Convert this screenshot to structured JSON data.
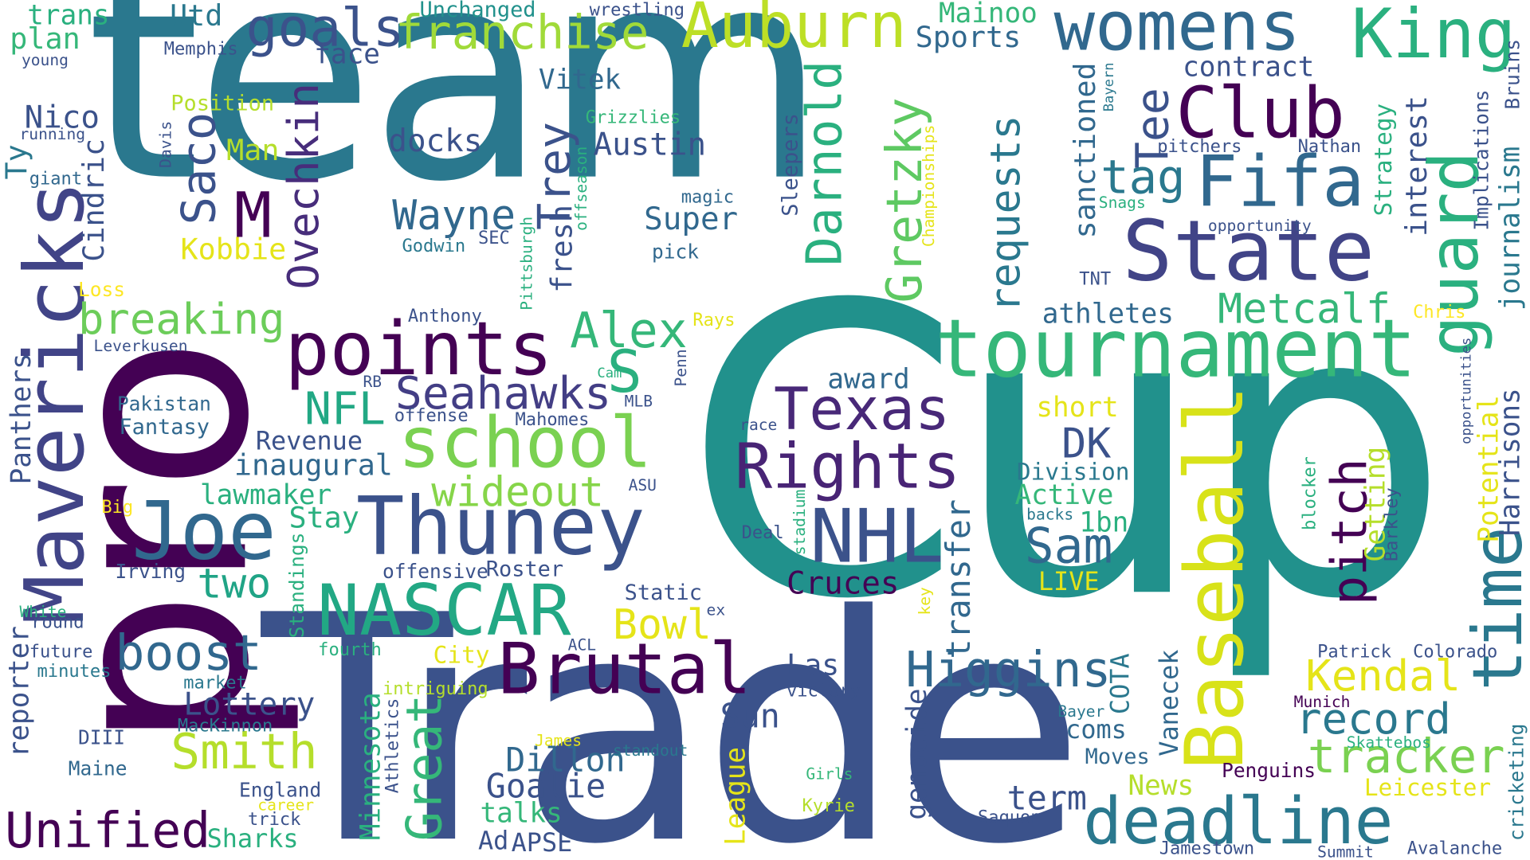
{
  "palette": {
    "dark_purple": "#440154",
    "indigo": "#3b528b",
    "blue": "#31688e",
    "teal": "#21918c",
    "sea": "#2ab07f",
    "green": "#5ec962",
    "lime": "#b5de2b",
    "yellow": "#fde725"
  },
  "words": [
    {
      "text": "team",
      "color": "#2a788e"
    },
    {
      "text": "Cup",
      "color": "#21918c"
    },
    {
      "text": "Trade",
      "color": "#3b528b"
    },
    {
      "text": "pro",
      "color": "#440154"
    },
    {
      "text": "Mavericks",
      "color": "#414487"
    },
    {
      "text": "tournament",
      "color": "#35b779"
    },
    {
      "text": "womens",
      "color": "#31688e"
    },
    {
      "text": "State",
      "color": "#414487"
    },
    {
      "text": "Fifa",
      "color": "#31688e"
    },
    {
      "text": "Club",
      "color": "#440154"
    },
    {
      "text": "King",
      "color": "#2ab07f"
    },
    {
      "text": "guard",
      "color": "#2ab07f"
    },
    {
      "text": "time",
      "color": "#2a788e"
    },
    {
      "text": "Baseball",
      "color": "#d8e219"
    },
    {
      "text": "tracker",
      "color": "#7ad151"
    },
    {
      "text": "deadline",
      "color": "#2a788e"
    },
    {
      "text": "Thuney",
      "color": "#3b528b"
    },
    {
      "text": "Joe",
      "color": "#31688e"
    },
    {
      "text": "NASCAR",
      "color": "#22a884"
    },
    {
      "text": "Brutal",
      "color": "#440154"
    },
    {
      "text": "school",
      "color": "#7ad151"
    },
    {
      "text": "Rights",
      "color": "#482475"
    },
    {
      "text": "Texas",
      "color": "#482878"
    },
    {
      "text": "NHL",
      "color": "#3b528b"
    },
    {
      "text": "points",
      "color": "#440154"
    },
    {
      "text": "franchise",
      "color": "#a0da39"
    },
    {
      "text": "Auburn",
      "color": "#bddf26"
    },
    {
      "text": "goals",
      "color": "#3b528b"
    },
    {
      "text": "Unified",
      "color": "#440154"
    },
    {
      "text": "Smith",
      "color": "#b5de2b"
    },
    {
      "text": "boost",
      "color": "#31688e"
    },
    {
      "text": "breaking",
      "color": "#6ccd5a"
    },
    {
      "text": "Seahawks",
      "color": "#433e85"
    },
    {
      "text": "wideout",
      "color": "#86d549"
    },
    {
      "text": "Higgins",
      "color": "#31688e"
    },
    {
      "text": "Kendal",
      "color": "#e5e419"
    },
    {
      "text": "record",
      "color": "#2a788e"
    },
    {
      "text": "Alex",
      "color": "#35b779"
    },
    {
      "text": "Metcalf",
      "color": "#35b779"
    },
    {
      "text": "Wayne",
      "color": "#31688e"
    },
    {
      "text": "Sam",
      "color": "#31688e"
    },
    {
      "text": "pitch",
      "color": "#440154"
    },
    {
      "text": "Great",
      "color": "#35b779"
    },
    {
      "text": "Darnold",
      "color": "#2ab07f"
    },
    {
      "text": "Gretzky",
      "color": "#5ec962"
    },
    {
      "text": "Ovechkin",
      "color": "#472d7b"
    },
    {
      "text": "Saco",
      "color": "#3b528b"
    },
    {
      "text": "Trey",
      "color": "#3b528b"
    },
    {
      "text": "Tee",
      "color": "#3b528b"
    },
    {
      "text": "tag",
      "color": "#2a788e"
    },
    {
      "text": "DK",
      "color": "#3b528b"
    },
    {
      "text": "Bowl",
      "color": "#e5e419"
    },
    {
      "text": "NFL",
      "color": "#22a884"
    },
    {
      "text": "Dillon",
      "color": "#31688e"
    },
    {
      "text": "Goalie",
      "color": "#3b528b"
    },
    {
      "text": "term",
      "color": "#3b528b"
    },
    {
      "text": "two",
      "color": "#20a486"
    },
    {
      "text": "Lottery",
      "color": "#3b528b"
    },
    {
      "text": "Sun",
      "color": "#3b528b"
    },
    {
      "text": "Cruces",
      "color": "#440154"
    },
    {
      "text": "Las",
      "color": "#3b528b"
    },
    {
      "text": "Austin",
      "color": "#3b528b"
    },
    {
      "text": "Super",
      "color": "#31688e"
    },
    {
      "text": "docks",
      "color": "#3b528b"
    },
    {
      "text": "Nico",
      "color": "#3b528b"
    },
    {
      "text": "Kobbie",
      "color": "#e5e419"
    },
    {
      "text": "Man",
      "color": "#b5de2b"
    },
    {
      "text": "M",
      "color": "#440154"
    },
    {
      "text": "S",
      "color": "#2ab07f"
    },
    {
      "text": "transfer",
      "color": "#31688e"
    },
    {
      "text": "requests",
      "color": "#2a788e"
    },
    {
      "text": "sanctioned",
      "color": "#31688e"
    },
    {
      "text": "interest",
      "color": "#3b528b"
    },
    {
      "text": "contract",
      "color": "#3b528b"
    },
    {
      "text": "Sports",
      "color": "#31688e"
    },
    {
      "text": "Mainoo",
      "color": "#35b779"
    },
    {
      "text": "Utd",
      "color": "#2a788e"
    },
    {
      "text": "trans",
      "color": "#2ab07f"
    },
    {
      "text": "plan",
      "color": "#35b779"
    },
    {
      "text": "face",
      "color": "#3b528b"
    },
    {
      "text": "Vitek",
      "color": "#31688e"
    },
    {
      "text": "Position",
      "color": "#b5de2b"
    },
    {
      "text": "Cindric",
      "color": "#3b528b"
    },
    {
      "text": "Ty",
      "color": "#2a788e"
    },
    {
      "text": "giant",
      "color": "#31688e"
    },
    {
      "text": "running",
      "color": "#3b528b"
    },
    {
      "text": "young",
      "color": "#3b528b"
    },
    {
      "text": "Memphis",
      "color": "#3b528b"
    },
    {
      "text": "Unchanged",
      "color": "#21918c"
    },
    {
      "text": "wrestling",
      "color": "#3b528b"
    },
    {
      "text": "Panthers",
      "color": "#3b528b"
    },
    {
      "text": "reporter",
      "color": "#3b528b"
    },
    {
      "text": "Pakistan",
      "color": "#31688e"
    },
    {
      "text": "Fantasy",
      "color": "#31688e"
    },
    {
      "text": "Revenue",
      "color": "#3b528b"
    },
    {
      "text": "inaugural",
      "color": "#31688e"
    },
    {
      "text": "lawmaker",
      "color": "#2ab07f"
    },
    {
      "text": "Stay",
      "color": "#2ab07f"
    },
    {
      "text": "Leverkusen",
      "color": "#3b528b"
    },
    {
      "text": "Loss",
      "color": "#fde725"
    },
    {
      "text": "Anthony",
      "color": "#3b528b"
    },
    {
      "text": "athletes",
      "color": "#31688e"
    },
    {
      "text": "award",
      "color": "#31688e"
    },
    {
      "text": "short",
      "color": "#e5e419"
    },
    {
      "text": "Division",
      "color": "#2a788e"
    },
    {
      "text": "Active",
      "color": "#35b779"
    },
    {
      "text": "1bn",
      "color": "#2ab07f"
    },
    {
      "text": "LIVE",
      "color": "#e5e419"
    },
    {
      "text": "backs",
      "color": "#2a788e"
    },
    {
      "text": "Potential",
      "color": "#e5e419"
    },
    {
      "text": "Getting",
      "color": "#b5de2b"
    },
    {
      "text": "Harrisons",
      "color": "#3b528b"
    },
    {
      "text": "journalism",
      "color": "#2a788e"
    },
    {
      "text": "cricketing",
      "color": "#2a788e"
    },
    {
      "text": "Implications",
      "color": "#3b528b"
    },
    {
      "text": "Bruins",
      "color": "#3b528b"
    },
    {
      "text": "Strategy",
      "color": "#2ab07f"
    },
    {
      "text": "opportunity",
      "color": "#3b528b"
    },
    {
      "text": "pitchers",
      "color": "#3b528b"
    },
    {
      "text": "Nathan",
      "color": "#3b528b"
    },
    {
      "text": "Snags",
      "color": "#2ab07f"
    },
    {
      "text": "Bayern",
      "color": "#2a788e"
    },
    {
      "text": "Sleepers",
      "color": "#3b528b"
    },
    {
      "text": "magic",
      "color": "#31688e"
    },
    {
      "text": "pick",
      "color": "#31688e"
    },
    {
      "text": "Godwin",
      "color": "#2a788e"
    },
    {
      "text": "SEC",
      "color": "#3b528b"
    },
    {
      "text": "Grizzlies",
      "color": "#35b779"
    },
    {
      "text": "fresh",
      "color": "#3b528b"
    },
    {
      "text": "offseason",
      "color": "#2ab07f"
    },
    {
      "text": "Pittsburgh",
      "color": "#2ab07f"
    },
    {
      "text": "Championships",
      "color": "#e5e419"
    },
    {
      "text": "TNT",
      "color": "#3b528b"
    },
    {
      "text": "Chris",
      "color": "#fde725"
    },
    {
      "text": "opportunities",
      "color": "#3b528b"
    },
    {
      "text": "Rays",
      "color": "#e5e419"
    },
    {
      "text": "Penn",
      "color": "#3b528b"
    },
    {
      "text": "Cam",
      "color": "#2ab07f"
    },
    {
      "text": "RB",
      "color": "#3b528b"
    },
    {
      "text": "offense",
      "color": "#3b528b"
    },
    {
      "text": "MLB",
      "color": "#3b528b"
    },
    {
      "text": "Mahomes",
      "color": "#3b528b"
    },
    {
      "text": "race",
      "color": "#3b528b"
    },
    {
      "text": "ASU",
      "color": "#3b528b"
    },
    {
      "text": "Big",
      "color": "#fde725"
    },
    {
      "text": "Irving",
      "color": "#3b528b"
    },
    {
      "text": "offensive",
      "color": "#3b528b"
    },
    {
      "text": "Roster",
      "color": "#3b528b"
    },
    {
      "text": "Standings",
      "color": "#2ab07f"
    },
    {
      "text": "Deal",
      "color": "#3b528b"
    },
    {
      "text": "stadium",
      "color": "#2ab07f"
    },
    {
      "text": "Static",
      "color": "#3b528b"
    },
    {
      "text": "ex",
      "color": "#3b528b"
    },
    {
      "text": "key",
      "color": "#e5e419"
    },
    {
      "text": "blocker",
      "color": "#2ab07f"
    },
    {
      "text": "Barkley",
      "color": "#3b528b"
    },
    {
      "text": "White",
      "color": "#2ab07f"
    },
    {
      "text": "round",
      "color": "#3b528b"
    },
    {
      "text": "future",
      "color": "#3b528b"
    },
    {
      "text": "minutes",
      "color": "#2a788e"
    },
    {
      "text": "fourth",
      "color": "#2ab07f"
    },
    {
      "text": "City",
      "color": "#e5e419"
    },
    {
      "text": "ACL",
      "color": "#3b528b"
    },
    {
      "text": "market",
      "color": "#2a788e"
    },
    {
      "text": "MacKinnon",
      "color": "#2a788e"
    },
    {
      "text": "intriguing",
      "color": "#b5de2b"
    },
    {
      "text": "victory",
      "color": "#3b528b"
    },
    {
      "text": "Patrick",
      "color": "#3b528b"
    },
    {
      "text": "Colorado",
      "color": "#3b528b"
    },
    {
      "text": "Munich",
      "color": "#440154"
    },
    {
      "text": "Bayer",
      "color": "#2a788e"
    },
    {
      "text": "COTA",
      "color": "#2a788e"
    },
    {
      "text": "Vanecek",
      "color": "#31688e"
    },
    {
      "text": "Minnesota",
      "color": "#2ab07f"
    },
    {
      "text": "Athletics",
      "color": "#3b528b"
    },
    {
      "text": "League",
      "color": "#e5e419"
    },
    {
      "text": "genocide",
      "color": "#3b528b"
    },
    {
      "text": "coms",
      "color": "#31688e"
    },
    {
      "text": "Moves",
      "color": "#31688e"
    },
    {
      "text": "News",
      "color": "#b5de2b"
    },
    {
      "text": "Leicester",
      "color": "#e5e419"
    },
    {
      "text": "Penguins",
      "color": "#440154"
    },
    {
      "text": "Skattebos",
      "color": "#2ab07f"
    },
    {
      "text": "DIII",
      "color": "#3b528b"
    },
    {
      "text": "Maine",
      "color": "#31688e"
    },
    {
      "text": "England",
      "color": "#3b528b"
    },
    {
      "text": "career",
      "color": "#e5e419"
    },
    {
      "text": "trick",
      "color": "#3b528b"
    },
    {
      "text": "Sharks",
      "color": "#2ab07f"
    },
    {
      "text": "James",
      "color": "#e5e419"
    },
    {
      "text": "standout",
      "color": "#2a788e"
    },
    {
      "text": "Girls",
      "color": "#35b779"
    },
    {
      "text": "Kyrie",
      "color": "#b5de2b"
    },
    {
      "text": "talks",
      "color": "#35b779"
    },
    {
      "text": "Ad",
      "color": "#3b528b"
    },
    {
      "text": "APSE",
      "color": "#3b528b"
    },
    {
      "text": "Saquon",
      "color": "#3b528b"
    },
    {
      "text": "Jamestown",
      "color": "#3b528b"
    },
    {
      "text": "Summit",
      "color": "#3b528b"
    },
    {
      "text": "Avalanche",
      "color": "#3b528b"
    },
    {
      "text": "Davis",
      "color": "#3b528b"
    }
  ]
}
